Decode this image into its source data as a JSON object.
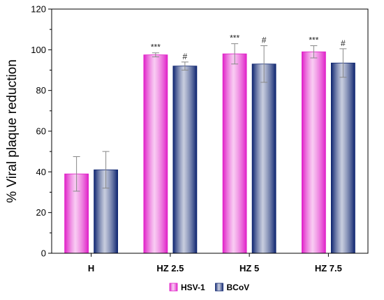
{
  "chart_data": {
    "type": "bar",
    "title": "",
    "xlabel": "",
    "ylabel": "% Viral plaque reduction",
    "ylim": [
      0,
      120
    ],
    "yticks": [
      0,
      20,
      40,
      60,
      80,
      100,
      120
    ],
    "categories": [
      "H",
      "HZ 2.5",
      "HZ 5",
      "HZ 7.5"
    ],
    "series": [
      {
        "name": "HSV-1",
        "color": "#e020c8",
        "values": [
          39,
          97.5,
          98,
          99
        ],
        "errors": [
          8.5,
          1,
          5,
          3
        ],
        "annotations": [
          "",
          "***",
          "***",
          "***"
        ]
      },
      {
        "name": "BCoV",
        "color": "#0e2570",
        "values": [
          41,
          92,
          93,
          93.5
        ],
        "errors": [
          9,
          2,
          9,
          7
        ],
        "annotations": [
          "",
          "#",
          "#",
          "#"
        ]
      }
    ],
    "legend_position": "bottom-center",
    "grid": false
  }
}
